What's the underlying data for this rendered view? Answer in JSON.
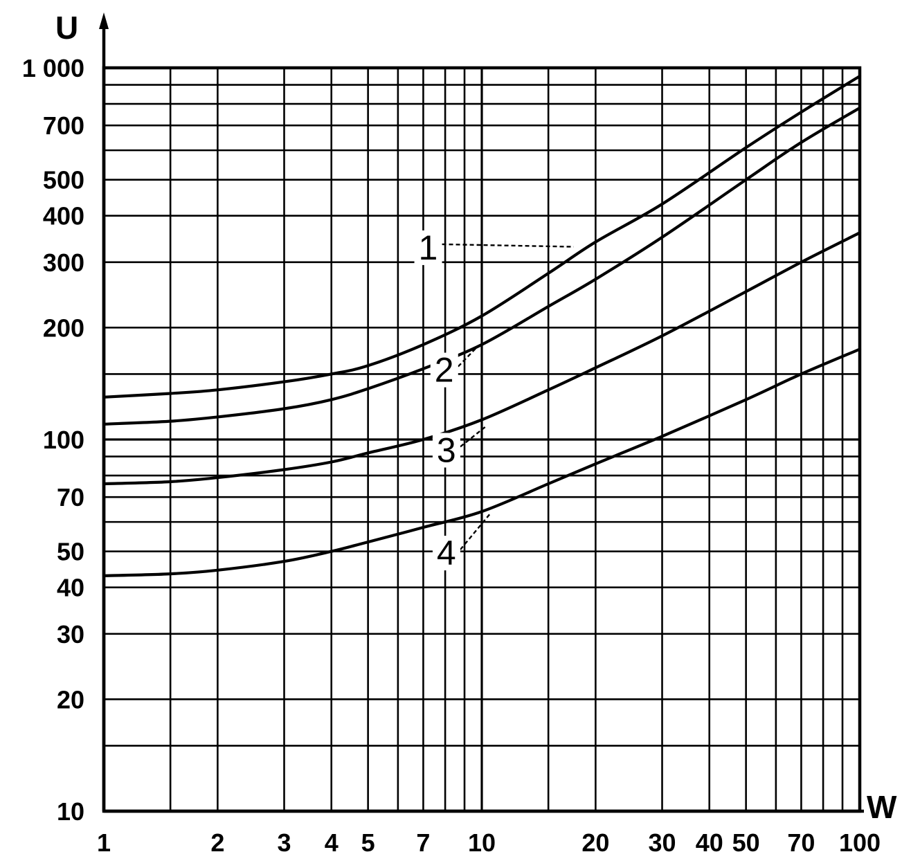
{
  "chart_data": {
    "type": "line",
    "title": "",
    "xlabel": "W",
    "ylabel": "U",
    "x_scale": "log",
    "y_scale": "log",
    "xlim": [
      1,
      100
    ],
    "ylim": [
      10,
      1000
    ],
    "grid": true,
    "x_ticks": [
      {
        "value": 1,
        "label": "1"
      },
      {
        "value": 2,
        "label": "2"
      },
      {
        "value": 3,
        "label": "3"
      },
      {
        "value": 4,
        "label": "4"
      },
      {
        "value": 5,
        "label": "5"
      },
      {
        "value": 7,
        "label": "7"
      },
      {
        "value": 10,
        "label": "10"
      },
      {
        "value": 20,
        "label": "20"
      },
      {
        "value": 30,
        "label": "30"
      },
      {
        "value": 40,
        "label": "40"
      },
      {
        "value": 50,
        "label": "50"
      },
      {
        "value": 70,
        "label": "70"
      },
      {
        "value": 100,
        "label": "100"
      }
    ],
    "y_ticks": [
      {
        "value": 10,
        "label": "10"
      },
      {
        "value": 20,
        "label": "20"
      },
      {
        "value": 30,
        "label": "30"
      },
      {
        "value": 40,
        "label": "40"
      },
      {
        "value": 50,
        "label": "50"
      },
      {
        "value": 70,
        "label": "70"
      },
      {
        "value": 100,
        "label": "100"
      },
      {
        "value": 200,
        "label": "200"
      },
      {
        "value": 300,
        "label": "300"
      },
      {
        "value": 400,
        "label": "400"
      },
      {
        "value": 500,
        "label": "500"
      },
      {
        "value": 700,
        "label": "700"
      },
      {
        "value": 1000,
        "label": "1 000"
      }
    ],
    "x_grid": [
      1,
      1.5,
      2,
      3,
      4,
      5,
      6,
      7,
      8,
      9,
      10,
      15,
      20,
      30,
      40,
      50,
      60,
      70,
      80,
      90,
      100
    ],
    "y_grid": [
      10,
      15,
      20,
      30,
      40,
      50,
      60,
      70,
      80,
      90,
      100,
      150,
      200,
      300,
      400,
      500,
      600,
      700,
      800,
      900,
      1000
    ],
    "series": [
      {
        "label": "1",
        "label_at": [
          6.8,
          305
        ],
        "pointer_to": [
          17.5,
          330
        ],
        "x": [
          1,
          1.5,
          2,
          3,
          4,
          5,
          7,
          10,
          15,
          20,
          30,
          50,
          70,
          100
        ],
        "y": [
          130,
          133,
          136,
          143,
          150,
          158,
          180,
          215,
          280,
          340,
          430,
          610,
          760,
          950
        ]
      },
      {
        "label": "2",
        "label_at": [
          7.5,
          143
        ],
        "pointer_to": [
          9.7,
          177
        ],
        "x": [
          1,
          1.5,
          2,
          3,
          4,
          5,
          7,
          10,
          15,
          20,
          30,
          50,
          70,
          100
        ],
        "y": [
          110,
          112,
          115,
          121,
          128,
          137,
          155,
          180,
          228,
          270,
          350,
          500,
          630,
          780
        ]
      },
      {
        "label": "3",
        "label_at": [
          7.6,
          87
        ],
        "pointer_to": [
          10.2,
          108
        ],
        "x": [
          1,
          1.5,
          2,
          3,
          4,
          5,
          7,
          10,
          15,
          20,
          30,
          50,
          70,
          100
        ],
        "y": [
          76,
          77,
          79,
          83,
          87,
          92,
          100,
          113,
          136,
          156,
          190,
          250,
          300,
          360
        ]
      },
      {
        "label": "4",
        "label_at": [
          7.6,
          46
        ],
        "pointer_to": [
          10.5,
          63
        ],
        "x": [
          1,
          1.5,
          2,
          3,
          4,
          5,
          7,
          10,
          15,
          20,
          30,
          50,
          70,
          100
        ],
        "y": [
          43,
          43.5,
          44.5,
          47,
          50,
          53,
          58,
          64,
          76,
          86,
          102,
          128,
          150,
          175
        ]
      }
    ]
  }
}
